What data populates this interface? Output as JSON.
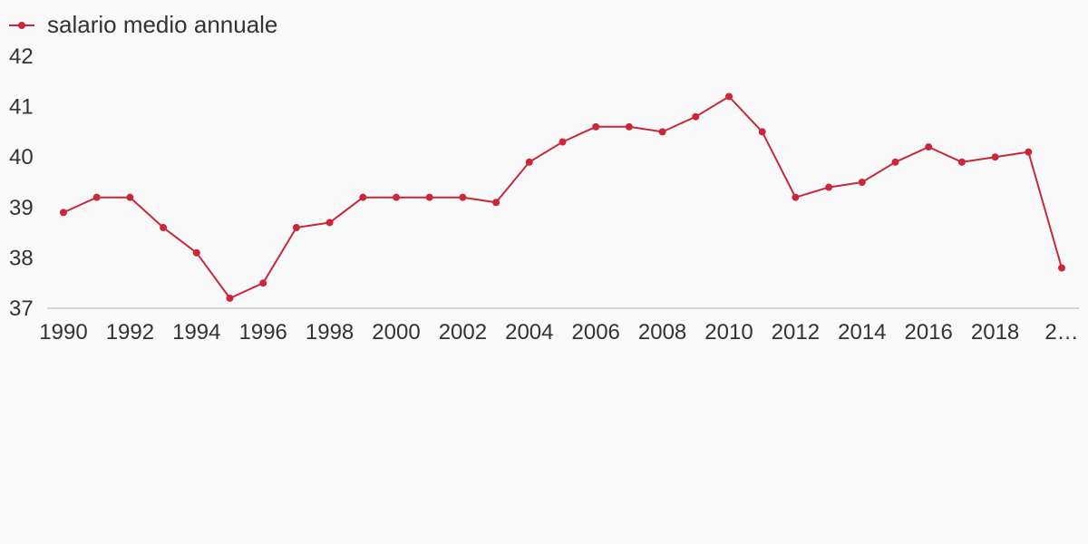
{
  "chart_data": {
    "type": "line",
    "title": "",
    "xlabel": "",
    "ylabel": "",
    "x": [
      1990,
      1991,
      1992,
      1993,
      1994,
      1995,
      1996,
      1997,
      1998,
      1999,
      2000,
      2001,
      2002,
      2003,
      2004,
      2005,
      2006,
      2007,
      2008,
      2009,
      2010,
      2011,
      2012,
      2013,
      2014,
      2015,
      2016,
      2017,
      2018,
      2019,
      2020
    ],
    "series": [
      {
        "name": "salario medio annuale",
        "color": "#c8283a",
        "values": [
          38.9,
          39.2,
          39.2,
          38.6,
          38.1,
          37.2,
          37.5,
          38.6,
          38.7,
          39.2,
          39.2,
          39.2,
          39.2,
          39.1,
          39.9,
          40.3,
          40.6,
          40.6,
          40.5,
          40.8,
          41.2,
          40.5,
          39.2,
          39.4,
          39.5,
          39.9,
          40.2,
          39.9,
          40.0,
          40.1,
          37.8
        ]
      }
    ],
    "ylim": [
      37,
      42
    ],
    "y_ticks": [
      "37",
      "38",
      "39",
      "40",
      "41",
      "42"
    ],
    "x_tick_labels": [
      "1990",
      "1992",
      "1994",
      "1996",
      "1998",
      "2000",
      "2002",
      "2004",
      "2006",
      "2008",
      "2010",
      "2012",
      "2014",
      "2016",
      "2018",
      "2…"
    ],
    "grid": false,
    "legend_position": "top-left",
    "baseline_color": "#d4d4d4"
  }
}
